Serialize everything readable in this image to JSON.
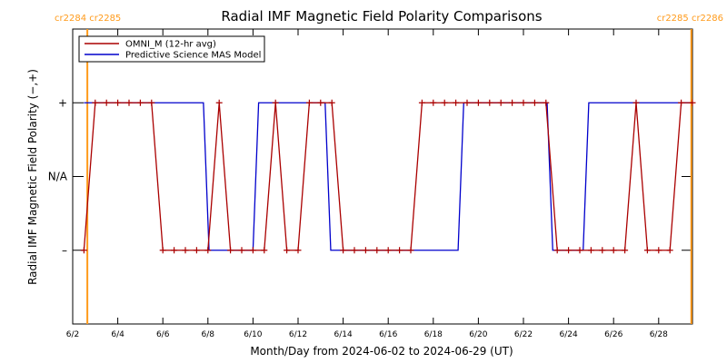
{
  "chart_data": {
    "type": "line",
    "title": "Radial IMF Magnetic Field Polarity Comparisons",
    "xlabel": "Month/Day from 2024-06-02 to 2024-06-29 (UT)",
    "ylabel": "Radial IMF Magnetic Field Polarity (−,+)",
    "x_unit": "days after 2024-06-02 00:00 UT",
    "xlim": [
      0,
      27.5
    ],
    "ylim": [
      -2,
      2
    ],
    "x_ticks": [
      {
        "x": 0,
        "label": "6/2"
      },
      {
        "x": 2,
        "label": "6/4"
      },
      {
        "x": 4,
        "label": "6/6"
      },
      {
        "x": 6,
        "label": "6/8"
      },
      {
        "x": 8,
        "label": "6/10"
      },
      {
        "x": 10,
        "label": "6/12"
      },
      {
        "x": 12,
        "label": "6/14"
      },
      {
        "x": 14,
        "label": "6/16"
      },
      {
        "x": 16,
        "label": "6/18"
      },
      {
        "x": 18,
        "label": "6/20"
      },
      {
        "x": 20,
        "label": "6/22"
      },
      {
        "x": 22,
        "label": "6/24"
      },
      {
        "x": 24,
        "label": "6/26"
      },
      {
        "x": 26,
        "label": "6/28"
      }
    ],
    "y_ticks": [
      {
        "y": 1,
        "label": "+"
      },
      {
        "y": 0,
        "label": "N/A"
      },
      {
        "y": -1,
        "label": "–"
      }
    ],
    "carrington_markers": [
      {
        "x": 0.65,
        "label": "cr2284 cr2285",
        "color": "#ff9a1a"
      },
      {
        "x": 27.45,
        "label": "cr2285 cr2286",
        "color": "#ff9a1a"
      }
    ],
    "legend": {
      "placement": "top-left"
    },
    "series": [
      {
        "name": "OMNI_M (12-hr avg)",
        "color": "#aa0000",
        "marker": "plus",
        "x": [
          0.5,
          1.0,
          1.5,
          2.0,
          2.5,
          3.0,
          3.5,
          4.0,
          4.5,
          5.0,
          5.5,
          6.0,
          6.5,
          7.0,
          7.5,
          8.0,
          8.5,
          9.0,
          9.5,
          10.0,
          10.5,
          11.0,
          11.5,
          12.0,
          12.5,
          13.0,
          13.5,
          14.0,
          14.5,
          15.0,
          15.5,
          16.0,
          16.5,
          17.0,
          17.5,
          18.0,
          18.5,
          19.0,
          19.5,
          20.0,
          20.5,
          21.0,
          21.5,
          22.0,
          22.5,
          23.0,
          23.5,
          24.0,
          24.5,
          25.0,
          25.5,
          26.0,
          26.5,
          27.0,
          27.5
        ],
        "y": [
          -1,
          1,
          1,
          1,
          1,
          1,
          1,
          -1,
          -1,
          -1,
          -1,
          -1,
          1,
          -1,
          -1,
          -1,
          -1,
          1,
          -1,
          -1,
          1,
          1,
          1,
          -1,
          -1,
          -1,
          -1,
          -1,
          -1,
          -1,
          1,
          1,
          1,
          1,
          1,
          1,
          1,
          1,
          1,
          1,
          1,
          1,
          -1,
          -1,
          -1,
          -1,
          -1,
          -1,
          -1,
          1,
          -1,
          -1,
          -1,
          1,
          1
        ]
      },
      {
        "name": "Predictive Science MAS Model",
        "color": "#0000cc",
        "marker": "none",
        "x": [
          0.5,
          0.95,
          5.8,
          6.05,
          8.0,
          8.25,
          11.2,
          11.45,
          17.1,
          17.35,
          21.05,
          21.3,
          22.65,
          22.9,
          27.5
        ],
        "y": [
          1,
          1,
          1,
          -1,
          -1,
          1,
          1,
          -1,
          -1,
          1,
          1,
          -1,
          -1,
          1,
          1
        ]
      }
    ]
  }
}
